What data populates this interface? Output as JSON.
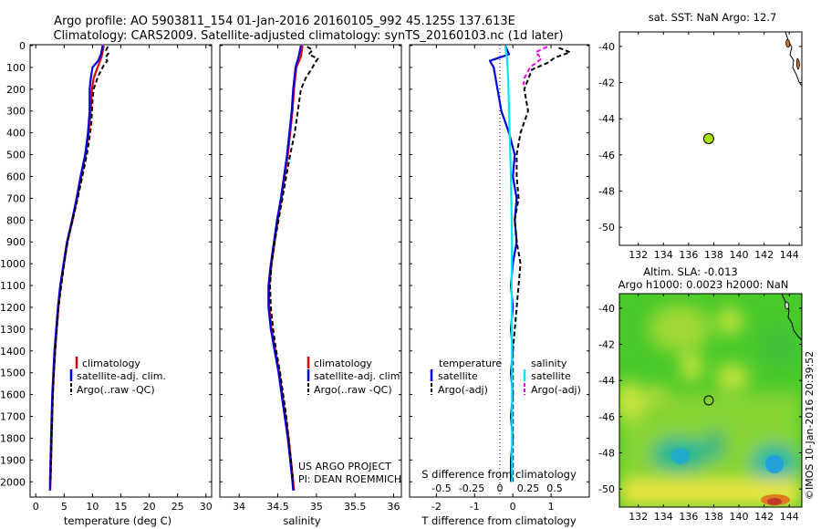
{
  "header": {
    "title_line1": "Argo profile: AO 5903811_154 01-Jan-2016 20160105_992 45.125S 137.613E",
    "title_line2": "Climatology: CARS2009. Satellite-adjusted climatology: synTS_20160103.nc (1d later)"
  },
  "colors": {
    "climatology": "#e00000",
    "satellite_adj": "#0000dd",
    "argo": "#000000",
    "salinity_satellite": "#00e5ee",
    "salinity_argo": "#ee00ee",
    "float_marker": "#a8e000"
  },
  "legend_tp": [
    "climatology",
    "satellite-adj. clim.",
    "Argo(..raw -QC)"
  ],
  "legend_diff": {
    "temp_header": "temperature",
    "sal_header": "salinity",
    "temp_items": [
      "satellite",
      "Argo(-adj)"
    ],
    "sal_items": [
      "satellite",
      "Argo(-adj)"
    ]
  },
  "annotations": {
    "project": "US ARGO PROJECT",
    "pi": "PI: DEAN ROEMMICH",
    "imos_stamp": "©IMOS 10-Jan-2016 20:39:52"
  },
  "map_titles": {
    "sst": "sat. SST: NaN Argo: 12.7",
    "sla_line1": "Altim. SLA: -0.013",
    "sla_line2": "Argo h1000: 0.0023 h2000: NaN"
  },
  "chart_data": [
    {
      "type": "line",
      "panel": "temperature",
      "xlabel": "temperature (deg C)",
      "ylabel": "",
      "xlim": [
        -1,
        31
      ],
      "ylim": [
        2070,
        0
      ],
      "x_ticks": [
        0,
        5,
        10,
        15,
        20,
        25,
        30
      ],
      "y_ticks": [
        0,
        100,
        200,
        300,
        400,
        500,
        600,
        700,
        800,
        900,
        1000,
        1100,
        1200,
        1300,
        1400,
        1500,
        1600,
        1700,
        1800,
        1900,
        2000
      ],
      "series": [
        {
          "name": "climatology",
          "style": "solid",
          "color": "#e00000",
          "points": [
            [
              12.0,
              0
            ],
            [
              11.6,
              50
            ],
            [
              10.9,
              100
            ],
            [
              10.2,
              150
            ],
            [
              9.9,
              200
            ],
            [
              9.7,
              300
            ],
            [
              9.3,
              400
            ],
            [
              8.8,
              500
            ],
            [
              8.0,
              600
            ],
            [
              7.3,
              700
            ],
            [
              6.5,
              800
            ],
            [
              5.6,
              900
            ],
            [
              5.0,
              1000
            ],
            [
              4.4,
              1100
            ],
            [
              4.0,
              1200
            ],
            [
              3.7,
              1300
            ],
            [
              3.4,
              1400
            ],
            [
              3.2,
              1500
            ],
            [
              3.0,
              1600
            ],
            [
              2.9,
              1700
            ],
            [
              2.8,
              1800
            ],
            [
              2.7,
              1900
            ],
            [
              2.6,
              2000
            ],
            [
              2.55,
              2040
            ]
          ]
        },
        {
          "name": "satellite-adj. clim.",
          "style": "solid",
          "color": "#0000dd",
          "points": [
            [
              11.8,
              0
            ],
            [
              11.5,
              40
            ],
            [
              11.0,
              70
            ],
            [
              10.0,
              100
            ],
            [
              9.7,
              150
            ],
            [
              9.5,
              200
            ],
            [
              9.5,
              300
            ],
            [
              9.2,
              400
            ],
            [
              8.7,
              500
            ],
            [
              7.9,
              600
            ],
            [
              7.2,
              700
            ],
            [
              6.4,
              800
            ],
            [
              5.5,
              900
            ],
            [
              4.9,
              1000
            ],
            [
              4.3,
              1100
            ],
            [
              3.9,
              1200
            ],
            [
              3.6,
              1300
            ],
            [
              3.3,
              1400
            ],
            [
              3.1,
              1500
            ],
            [
              2.9,
              1600
            ],
            [
              2.8,
              1700
            ],
            [
              2.7,
              1800
            ],
            [
              2.6,
              1900
            ],
            [
              2.5,
              2000
            ],
            [
              2.5,
              2040
            ]
          ]
        },
        {
          "name": "Argo(..raw -QC)",
          "style": "dashed",
          "color": "#000000",
          "points": [
            [
              12.7,
              5
            ],
            [
              12.4,
              20
            ],
            [
              12.8,
              35
            ],
            [
              12.3,
              55
            ],
            [
              12.6,
              70
            ],
            [
              12.0,
              90
            ],
            [
              11.6,
              110
            ],
            [
              11.0,
              140
            ],
            [
              10.6,
              170
            ],
            [
              10.2,
              200
            ],
            [
              10.0,
              250
            ],
            [
              9.9,
              300
            ],
            [
              9.8,
              350
            ],
            [
              9.6,
              400
            ],
            [
              9.3,
              450
            ],
            [
              9.0,
              500
            ],
            [
              8.2,
              600
            ],
            [
              7.4,
              700
            ],
            [
              6.5,
              800
            ],
            [
              5.6,
              900
            ],
            [
              5.0,
              1000
            ],
            [
              4.5,
              1100
            ],
            [
              4.0,
              1200
            ],
            [
              3.7,
              1300
            ],
            [
              3.4,
              1400
            ],
            [
              3.2,
              1500
            ],
            [
              3.0,
              1600
            ],
            [
              2.9,
              1700
            ],
            [
              2.8,
              1800
            ],
            [
              2.7,
              1900
            ],
            [
              2.6,
              2000
            ]
          ]
        }
      ]
    },
    {
      "type": "line",
      "panel": "salinity",
      "xlabel": "salinity",
      "ylabel": "",
      "xlim": [
        33.75,
        36.1
      ],
      "ylim": [
        2070,
        0
      ],
      "x_ticks": [
        34,
        34.5,
        35,
        35.5,
        36
      ],
      "series": [
        {
          "name": "climatology",
          "style": "solid",
          "color": "#e00000",
          "points": [
            [
              34.82,
              0
            ],
            [
              34.8,
              50
            ],
            [
              34.74,
              100
            ],
            [
              34.71,
              200
            ],
            [
              34.69,
              300
            ],
            [
              34.66,
              400
            ],
            [
              34.63,
              500
            ],
            [
              34.59,
              600
            ],
            [
              34.55,
              700
            ],
            [
              34.5,
              800
            ],
            [
              34.46,
              900
            ],
            [
              34.42,
              1000
            ],
            [
              34.39,
              1100
            ],
            [
              34.39,
              1200
            ],
            [
              34.42,
              1300
            ],
            [
              34.47,
              1400
            ],
            [
              34.52,
              1500
            ],
            [
              34.56,
              1600
            ],
            [
              34.6,
              1700
            ],
            [
              34.64,
              1800
            ],
            [
              34.67,
              1900
            ],
            [
              34.7,
              2000
            ],
            [
              34.71,
              2040
            ]
          ]
        },
        {
          "name": "satellite-adj. clim.",
          "style": "solid",
          "color": "#0000dd",
          "points": [
            [
              34.8,
              0
            ],
            [
              34.77,
              50
            ],
            [
              34.73,
              100
            ],
            [
              34.7,
              200
            ],
            [
              34.68,
              300
            ],
            [
              34.65,
              400
            ],
            [
              34.62,
              500
            ],
            [
              34.58,
              600
            ],
            [
              34.54,
              700
            ],
            [
              34.49,
              800
            ],
            [
              34.45,
              900
            ],
            [
              34.41,
              1000
            ],
            [
              34.38,
              1100
            ],
            [
              34.38,
              1200
            ],
            [
              34.41,
              1300
            ],
            [
              34.46,
              1400
            ],
            [
              34.51,
              1500
            ],
            [
              34.55,
              1600
            ],
            [
              34.59,
              1700
            ],
            [
              34.63,
              1800
            ],
            [
              34.66,
              1900
            ],
            [
              34.69,
              2000
            ],
            [
              34.7,
              2040
            ]
          ]
        },
        {
          "name": "Argo(..raw -QC)",
          "style": "dashed",
          "color": "#000000",
          "points": [
            [
              34.88,
              5
            ],
            [
              34.95,
              20
            ],
            [
              34.9,
              40
            ],
            [
              35.02,
              60
            ],
            [
              34.98,
              80
            ],
            [
              34.95,
              100
            ],
            [
              34.86,
              150
            ],
            [
              34.8,
              200
            ],
            [
              34.76,
              300
            ],
            [
              34.72,
              400
            ],
            [
              34.66,
              500
            ],
            [
              34.61,
              600
            ],
            [
              34.56,
              700
            ],
            [
              34.51,
              800
            ],
            [
              34.46,
              900
            ],
            [
              34.42,
              1000
            ],
            [
              34.4,
              1100
            ],
            [
              34.41,
              1200
            ],
            [
              34.44,
              1300
            ],
            [
              34.48,
              1400
            ],
            [
              34.53,
              1500
            ],
            [
              34.57,
              1600
            ],
            [
              34.61,
              1700
            ],
            [
              34.64,
              1800
            ],
            [
              34.67,
              1900
            ],
            [
              34.7,
              2000
            ]
          ]
        }
      ]
    },
    {
      "type": "line",
      "panel": "difference",
      "xlabel": "T difference from climatology",
      "xlabel_top": "S difference from climatology",
      "xlim": [
        -2.7,
        2.0
      ],
      "x_ticks": [
        -2,
        -1,
        0,
        1
      ],
      "x2_ticks": [
        "-0.5",
        "-0.25",
        "0",
        "0.25",
        "0.5"
      ],
      "ylim": [
        2070,
        0
      ],
      "series": [
        {
          "name": "temperature satellite",
          "style": "solid",
          "color": "#0000dd",
          "points": [
            [
              -0.2,
              0
            ],
            [
              -0.1,
              40
            ],
            [
              -0.6,
              70
            ],
            [
              -0.5,
              100
            ],
            [
              -0.4,
              200
            ],
            [
              -0.3,
              300
            ],
            [
              -0.1,
              400
            ],
            [
              0.05,
              500
            ],
            [
              0.0,
              600
            ],
            [
              0.1,
              700
            ],
            [
              0.05,
              800
            ],
            [
              0.1,
              900
            ],
            [
              0.0,
              1000
            ],
            [
              -0.05,
              1100
            ],
            [
              0.0,
              1200
            ],
            [
              -0.05,
              1300
            ],
            [
              0.0,
              1400
            ],
            [
              -0.05,
              1500
            ],
            [
              0.0,
              1600
            ],
            [
              -0.05,
              1700
            ],
            [
              0.0,
              1800
            ],
            [
              -0.05,
              1900
            ],
            [
              -0.05,
              2000
            ]
          ]
        },
        {
          "name": "temperature Argo(-adj)",
          "style": "dashed",
          "color": "#000000",
          "points": [
            [
              1.2,
              10
            ],
            [
              1.5,
              30
            ],
            [
              1.1,
              55
            ],
            [
              0.9,
              80
            ],
            [
              0.5,
              110
            ],
            [
              0.3,
              200
            ],
            [
              0.4,
              300
            ],
            [
              0.2,
              400
            ],
            [
              0.1,
              500
            ],
            [
              0.1,
              600
            ],
            [
              0.15,
              700
            ],
            [
              0.05,
              800
            ],
            [
              0.1,
              900
            ],
            [
              0.2,
              1000
            ],
            [
              0.15,
              1100
            ],
            [
              0.1,
              1200
            ],
            [
              0.05,
              1300
            ],
            [
              0.0,
              1400
            ],
            [
              0.0,
              1500
            ],
            [
              0.0,
              1600
            ],
            [
              0.0,
              1700
            ],
            [
              0.0,
              1800
            ],
            [
              0.0,
              1900
            ],
            [
              0.0,
              2000
            ]
          ]
        },
        {
          "name": "salinity satellite",
          "style": "solid",
          "color": "#00e5ee",
          "points": [
            [
              -0.2,
              0
            ],
            [
              -0.15,
              60
            ],
            [
              -0.12,
              150
            ],
            [
              -0.1,
              300
            ],
            [
              -0.05,
              600
            ],
            [
              -0.02,
              900
            ],
            [
              -0.03,
              1100
            ],
            [
              -0.02,
              1500
            ],
            [
              -0.02,
              2000
            ]
          ]
        },
        {
          "name": "salinity Argo(-adj)",
          "style": "dashed",
          "color": "#ee00ee",
          "points": [
            [
              0.9,
              5
            ],
            [
              0.6,
              30
            ],
            [
              0.75,
              60
            ],
            [
              0.45,
              100
            ],
            [
              0.3,
              150
            ],
            [
              0.28,
              180
            ]
          ]
        }
      ]
    },
    {
      "type": "scatter",
      "panel": "map_sst",
      "title": "sat. SST: NaN Argo: 12.7",
      "xlim": [
        130.5,
        145
      ],
      "ylim": [
        -51,
        -39.2
      ],
      "x_ticks": [
        132,
        134,
        136,
        138,
        140,
        142,
        144
      ],
      "y_ticks": [
        -40,
        -42,
        -44,
        -46,
        -48,
        -50
      ],
      "points": [
        [
          137.6,
          -45.1
        ]
      ]
    },
    {
      "type": "heatmap",
      "panel": "map_sla",
      "title": "Altim. SLA: -0.013",
      "xlim": [
        130.5,
        145
      ],
      "ylim": [
        -51,
        -39.2
      ],
      "x_ticks": [
        132,
        134,
        136,
        138,
        140,
        142,
        144
      ],
      "y_ticks": [
        -40,
        -42,
        -44,
        -46,
        -48,
        -50
      ],
      "points": [
        [
          137.6,
          -45.1
        ]
      ]
    }
  ]
}
